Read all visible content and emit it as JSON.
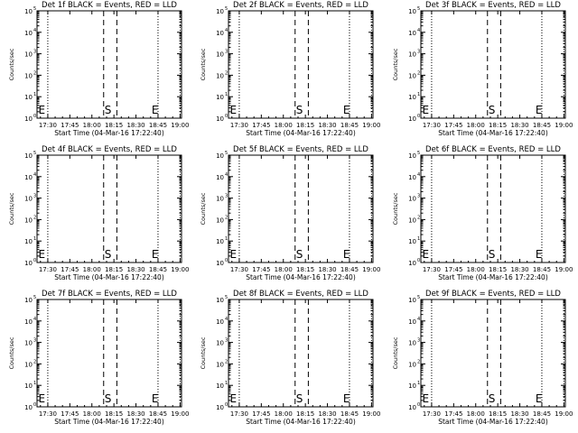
{
  "panels": [
    {
      "title": "Det 1f BLACK = Events, RED = LLD"
    },
    {
      "title": "Det 2f BLACK = Events, RED = LLD"
    },
    {
      "title": "Det 3f BLACK = Events, RED = LLD"
    },
    {
      "title": "Det 4f BLACK = Events, RED = LLD"
    },
    {
      "title": "Det 5f BLACK = Events, RED = LLD"
    },
    {
      "title": "Det 6f BLACK = Events, RED = LLD"
    },
    {
      "title": "Det 7f BLACK = Events, RED = LLD"
    },
    {
      "title": "Det 8f BLACK = Events, RED = LLD"
    },
    {
      "title": "Det 9f BLACK = Events, RED = LLD"
    }
  ],
  "chart_data": {
    "type": "line",
    "xlabel": "Start Time (04-Mar-16 17:22:40)",
    "ylabel": "Counts/sec",
    "x_ticks": [
      "17:30",
      "17:45",
      "18:00",
      "18:15",
      "18:30",
      "18:45",
      "19:00"
    ],
    "x_tick_minutes": [
      30,
      45,
      60,
      75,
      90,
      105,
      120
    ],
    "xlim_minutes_after_17_00": [
      22.67,
      121.0
    ],
    "y_scale": "log",
    "y_tick_exponents": [
      0,
      1,
      2,
      3,
      4,
      5
    ],
    "ylim": [
      1,
      100000
    ],
    "series": [],
    "dotted_lines_minutes": [
      30,
      105,
      120
    ],
    "dashed_lines_minutes": [
      68,
      77
    ],
    "markers": [
      {
        "label": "E",
        "minute": 23
      },
      {
        "label": "S",
        "minute": 68
      },
      {
        "label": "E",
        "minute": 100
      }
    ]
  }
}
